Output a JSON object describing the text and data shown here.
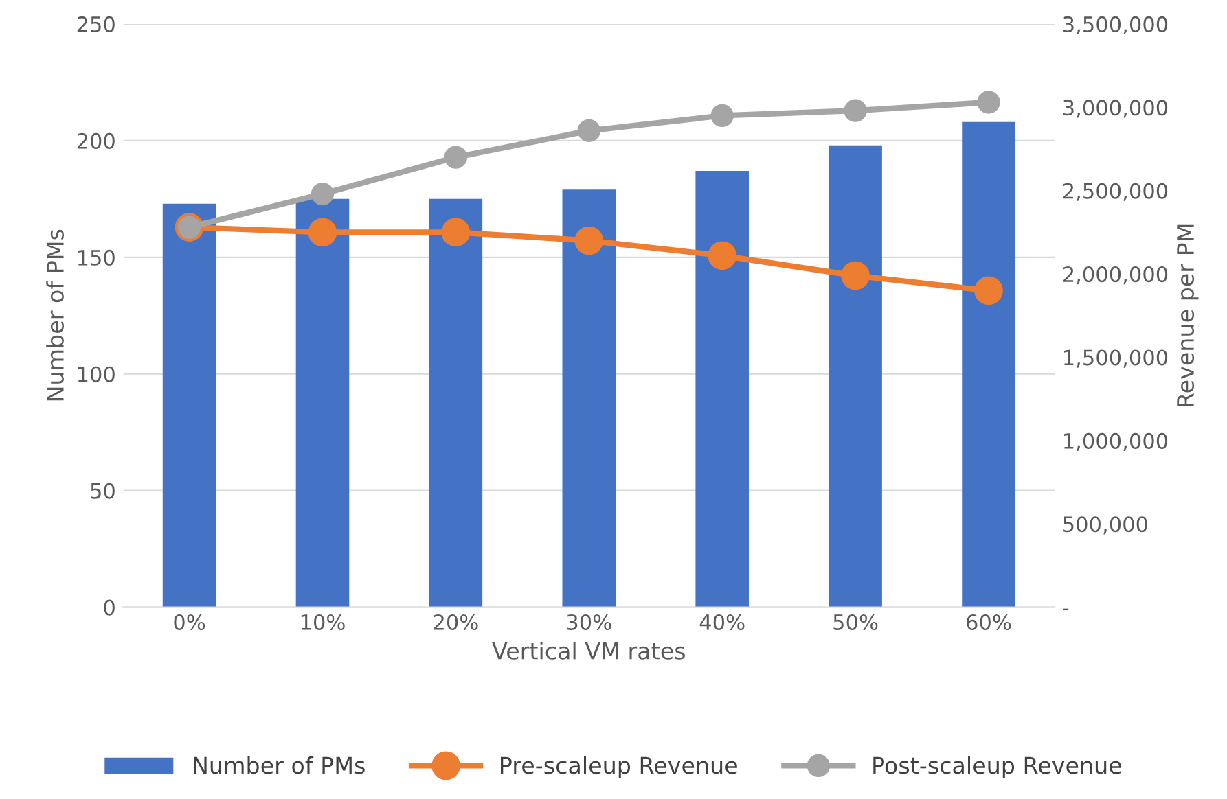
{
  "chart_data": {
    "type": "bar",
    "xlabel": "Vertical VM rates",
    "ylabel": "Number of PMs",
    "y2label": "Revenue per PM",
    "categories": [
      "0%",
      "10%",
      "20%",
      "30%",
      "40%",
      "50%",
      "60%"
    ],
    "series": [
      {
        "name": "Number of PMs",
        "color": "#4472c4",
        "values": [
          173,
          175,
          175,
          179,
          187,
          198,
          208
        ]
      },
      {
        "name": "Pre-scaleup Revenue",
        "type": "line",
        "axis": "y2",
        "color": "#ed7d31",
        "values": [
          2280000,
          2250000,
          2250000,
          2200000,
          2110000,
          1990000,
          1900000
        ]
      },
      {
        "name": "Post-scaleup Revenue",
        "type": "line",
        "axis": "y2",
        "color": "#a5a5a5",
        "values": [
          2280000,
          2480000,
          2700000,
          2860000,
          2950000,
          2980000,
          3030000
        ]
      }
    ],
    "ylim": [
      0,
      250
    ],
    "yticks": [
      0,
      50,
      100,
      150,
      200,
      250
    ],
    "y2lim": [
      0,
      3500000
    ],
    "y2ticks": [
      {
        "value": 0,
        "label": "-"
      },
      {
        "value": 500000,
        "label": "500,000"
      },
      {
        "value": 1000000,
        "label": "1,000,000"
      },
      {
        "value": 1500000,
        "label": "1,500,000"
      },
      {
        "value": 2000000,
        "label": "2,000,000"
      },
      {
        "value": 2500000,
        "label": "2,500,000"
      },
      {
        "value": 3000000,
        "label": "3,000,000"
      },
      {
        "value": 3500000,
        "label": "3,500,000"
      }
    ],
    "grid": "y",
    "legend": "bottom",
    "marker": "circle",
    "line_style": "solid"
  }
}
